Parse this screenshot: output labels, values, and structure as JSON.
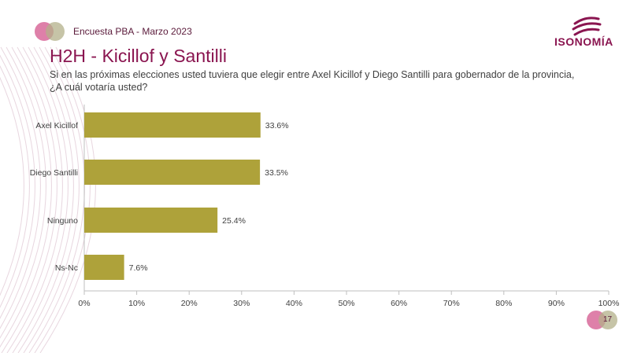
{
  "header": {
    "survey_label": "Encuesta PBA - Marzo 2023",
    "logo_text": "ISONOMÍA"
  },
  "title": "H2H - Kicillof y Santilli",
  "question": "Si en las próximas elecciones usted tuviera que elegir entre Axel Kicillof y Diego Santilli para gobernador de la provincia, ¿A cuál votaría usted?",
  "page_number": "17",
  "colors": {
    "bar": "#aea23a",
    "brand": "#8a1550",
    "circle_pink": "#d86a9a",
    "circle_olive": "#b3b08a"
  },
  "chart_data": {
    "type": "bar",
    "orientation": "horizontal",
    "title": "",
    "xlabel": "",
    "ylabel": "",
    "categories": [
      "Axel Kicillof",
      "Diego Santilli",
      "Ninguno",
      "Ns-Nc"
    ],
    "values": [
      33.6,
      33.5,
      25.4,
      7.6
    ],
    "value_labels": [
      "33.6%",
      "33.5%",
      "25.4%",
      "7.6%"
    ],
    "xlim": [
      0,
      100
    ],
    "xticks": [
      0,
      10,
      20,
      30,
      40,
      50,
      60,
      70,
      80,
      90,
      100
    ],
    "xtick_labels": [
      "0%",
      "10%",
      "20%",
      "30%",
      "40%",
      "50%",
      "60%",
      "70%",
      "80%",
      "90%",
      "100%"
    ],
    "grid": false,
    "legend": "none"
  }
}
